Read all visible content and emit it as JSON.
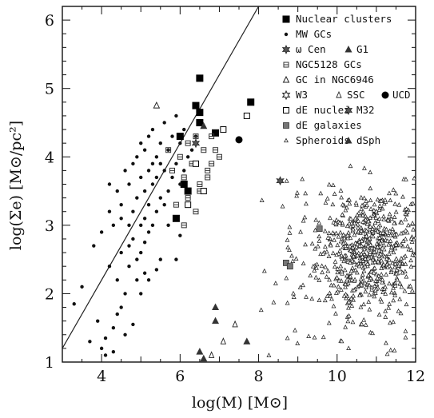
{
  "chart_data": {
    "type": "scatter",
    "title": "",
    "xlabel": "log(M)  [M⊙]",
    "ylabel": "log(Σe)  [M⊙/pc²]",
    "xlim": [
      3,
      12
    ],
    "ylim": [
      1,
      6.2
    ],
    "xticks": [
      4,
      6,
      8,
      10,
      12
    ],
    "yticks": [
      1,
      2,
      3,
      4,
      5,
      6
    ],
    "grid": false,
    "legend_position": "top-right",
    "line": {
      "x": [
        3,
        8
      ],
      "y": [
        1.2,
        6.2
      ]
    },
    "legend": [
      {
        "label": "Nuclear clusters",
        "marker": "filled-square"
      },
      {
        "label": "MW GCs",
        "marker": "dot"
      },
      {
        "label": "ω Cen",
        "marker": "star",
        "label2": "G1",
        "marker2": "filled-triangle"
      },
      {
        "label": "NGC5128 GCs",
        "marker": "cross-square"
      },
      {
        "label": "GC in NGC6946",
        "marker": "open-triangle"
      },
      {
        "label": "W3",
        "marker": "open-star",
        "label2": "SSC",
        "marker2": "thin-triangle",
        "label3": "UCD",
        "marker3": "filled-circle"
      },
      {
        "label": "dE nuclei",
        "marker": "open-square",
        "label2": "M32",
        "marker2": "star"
      },
      {
        "label": "dE galaxies",
        "marker": "gray-square"
      },
      {
        "label": "Spheroids",
        "marker": "small-triangle",
        "label2": "dSph",
        "marker2": "filled-triangle"
      }
    ],
    "series": [
      {
        "name": "Nuclear clusters",
        "marker": "filled-square",
        "x": [
          6.5,
          6.4,
          6.5,
          6.0,
          6.9,
          6.5,
          7.8,
          6.1,
          6.2,
          5.9
        ],
        "y": [
          5.15,
          4.75,
          4.65,
          4.3,
          4.35,
          4.5,
          4.8,
          3.6,
          3.5,
          3.1
        ]
      },
      {
        "name": "MW GCs",
        "marker": "dot",
        "x": [
          3.3,
          3.5,
          3.7,
          3.8,
          3.9,
          4.0,
          4.1,
          4.2,
          4.2,
          4.3,
          4.3,
          4.4,
          4.4,
          4.5,
          4.5,
          4.5,
          4.6,
          4.6,
          4.7,
          4.7,
          4.7,
          4.8,
          4.8,
          4.8,
          4.9,
          4.9,
          4.9,
          5.0,
          5.0,
          5.0,
          5.0,
          5.1,
          5.1,
          5.1,
          5.1,
          5.2,
          5.2,
          5.2,
          5.2,
          5.3,
          5.3,
          5.3,
          5.3,
          5.4,
          5.4,
          5.4,
          5.5,
          5.5,
          5.5,
          5.6,
          5.6,
          5.6,
          5.7,
          5.7,
          5.8,
          5.8,
          5.9,
          5.9,
          6.0,
          6.0,
          6.1,
          6.1,
          6.2,
          6.3,
          6.4,
          4.0,
          4.1,
          4.3,
          4.6,
          4.4,
          4.8,
          5.0,
          5.2,
          5.5,
          5.9,
          4.2,
          4.5,
          4.7,
          4.9,
          5.1,
          5.4,
          5.7,
          6.0
        ],
        "y": [
          1.85,
          2.1,
          1.3,
          2.7,
          1.6,
          2.9,
          1.1,
          2.4,
          3.2,
          1.5,
          3.0,
          2.2,
          3.5,
          1.8,
          2.6,
          3.3,
          2.0,
          3.8,
          2.4,
          3.0,
          3.6,
          2.8,
          3.2,
          3.9,
          2.5,
          3.4,
          4.0,
          2.6,
          3.0,
          3.7,
          4.2,
          2.3,
          3.1,
          3.5,
          4.1,
          2.9,
          3.3,
          3.8,
          4.3,
          3.0,
          3.6,
          3.9,
          4.4,
          3.2,
          3.7,
          4.0,
          3.4,
          3.9,
          4.2,
          3.3,
          3.8,
          4.5,
          3.5,
          4.1,
          3.7,
          4.3,
          3.9,
          4.6,
          3.6,
          4.2,
          3.8,
          4.4,
          4.0,
          4.1,
          4.3,
          1.2,
          1.35,
          1.15,
          1.4,
          1.7,
          1.55,
          2.0,
          2.2,
          2.5,
          2.5,
          3.6,
          3.1,
          2.7,
          2.2,
          2.75,
          2.35,
          3.0,
          2.85
        ]
      },
      {
        "name": "NGC5128 GCs",
        "marker": "cross-square",
        "x": [
          5.8,
          6.0,
          6.1,
          6.2,
          6.3,
          6.4,
          6.5,
          6.6,
          6.7,
          6.8,
          6.9,
          7.0,
          5.9,
          6.2,
          6.5,
          6.8,
          6.1,
          6.4,
          6.7,
          5.7
        ],
        "y": [
          3.8,
          4.0,
          3.7,
          4.2,
          3.9,
          4.3,
          3.6,
          4.1,
          3.8,
          4.3,
          4.1,
          4.0,
          3.3,
          3.4,
          3.5,
          3.9,
          3.0,
          3.2,
          3.7,
          4.1
        ]
      },
      {
        "name": "GC in NGC6946",
        "marker": "open-triangle",
        "x": [
          5.4
        ],
        "y": [
          4.75
        ]
      },
      {
        "name": "ω Cen",
        "marker": "star",
        "x": [
          6.4
        ],
        "y": [
          4.2
        ]
      },
      {
        "name": "G1",
        "marker": "filled-triangle",
        "x": [
          6.6
        ],
        "y": [
          4.45
        ]
      },
      {
        "name": "UCD",
        "marker": "filled-circle",
        "x": [
          7.5
        ],
        "y": [
          4.25
        ]
      },
      {
        "name": "dE nuclei",
        "marker": "open-square",
        "x": [
          6.2,
          7.1,
          7.7,
          6.4,
          6.6
        ],
        "y": [
          3.3,
          4.4,
          4.6,
          3.9,
          3.5
        ]
      },
      {
        "name": "M32",
        "marker": "star",
        "x": [
          8.55
        ],
        "y": [
          3.65
        ]
      },
      {
        "name": "dE galaxies",
        "marker": "gray-square",
        "x": [
          9.55,
          8.7,
          8.8
        ],
        "y": [
          2.95,
          2.45,
          2.4
        ]
      },
      {
        "name": "dSph",
        "marker": "filled-triangle",
        "x": [
          6.9,
          6.9,
          7.7,
          6.5,
          6.6
        ],
        "y": [
          1.8,
          1.6,
          1.3,
          1.15,
          1.05
        ]
      },
      {
        "name": "SSC",
        "marker": "thin-triangle",
        "x": [
          7.1,
          7.4,
          6.8
        ],
        "y": [
          1.3,
          1.55,
          1.1
        ]
      }
    ],
    "spheroids_cloud": {
      "name": "Spheroids",
      "marker": "small-triangle",
      "center_x": [
        10.9,
        11.0,
        10.2
      ],
      "center_y": [
        2.6,
        2.6,
        2.4
      ],
      "spread_x": [
        0.55,
        0.9,
        1.1
      ],
      "spread_y": [
        0.35,
        0.55,
        0.75
      ],
      "count": [
        380,
        220,
        160
      ]
    }
  }
}
